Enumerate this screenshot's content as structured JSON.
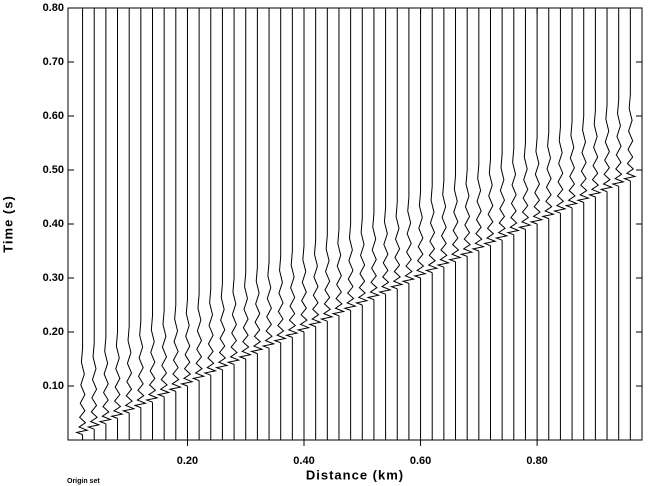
{
  "chart_data": {
    "type": "seismic",
    "x_label": "Distance (km)",
    "y_label": "Time (s)",
    "footnote": "Origin set",
    "xlim": [
      -0.005,
      0.98
    ],
    "ylim": [
      0,
      0.8
    ],
    "xticks": [
      {
        "value": 0.2,
        "label": "0.20"
      },
      {
        "value": 0.4,
        "label": "0.40"
      },
      {
        "value": 0.6,
        "label": "0.60"
      },
      {
        "value": 0.8,
        "label": "0.80"
      }
    ],
    "yticks": [
      {
        "value": 0.1,
        "label": "0.10"
      },
      {
        "value": 0.2,
        "label": "0.20"
      },
      {
        "value": 0.3,
        "label": "0.30"
      },
      {
        "value": 0.4,
        "label": "0.40"
      },
      {
        "value": 0.5,
        "label": "0.50"
      },
      {
        "value": 0.6,
        "label": "0.60"
      },
      {
        "value": 0.7,
        "label": "0.70"
      },
      {
        "value": 0.8,
        "label": "0.80"
      }
    ],
    "distance": [
      0.02,
      0.04,
      0.06,
      0.08,
      0.1,
      0.12,
      0.14,
      0.16,
      0.18,
      0.2,
      0.22,
      0.24,
      0.26,
      0.28,
      0.3,
      0.32,
      0.34,
      0.36,
      0.38,
      0.4,
      0.42,
      0.44,
      0.46,
      0.48,
      0.5,
      0.52,
      0.54,
      0.56,
      0.58,
      0.6,
      0.62,
      0.64,
      0.66,
      0.68,
      0.7,
      0.72,
      0.74,
      0.76,
      0.78,
      0.8,
      0.82,
      0.84,
      0.86,
      0.88,
      0.9,
      0.92,
      0.94,
      0.96
    ],
    "arrival_time": [
      0.01,
      0.02,
      0.03,
      0.04,
      0.05,
      0.06,
      0.07,
      0.08,
      0.09,
      0.1,
      0.11,
      0.12,
      0.13,
      0.14,
      0.15,
      0.16,
      0.17,
      0.18,
      0.19,
      0.2,
      0.21,
      0.22,
      0.23,
      0.24,
      0.25,
      0.26,
      0.27,
      0.28,
      0.29,
      0.3,
      0.31,
      0.32,
      0.33,
      0.34,
      0.35,
      0.36,
      0.37,
      0.38,
      0.39,
      0.4,
      0.41,
      0.42,
      0.43,
      0.44,
      0.45,
      0.46,
      0.47,
      0.48
    ],
    "wavelet_dt": [
      0,
      0.004,
      0.008,
      0.014,
      0.022,
      0.032,
      0.044,
      0.058,
      0.074,
      0.092,
      0.112,
      0.134,
      0.16
    ],
    "wavelet_amp": [
      0,
      -0.01,
      0.008,
      -0.006,
      0.005,
      -0.005,
      0.004,
      -0.004,
      0.004,
      -0.003,
      0.003,
      -0.002,
      0
    ]
  }
}
